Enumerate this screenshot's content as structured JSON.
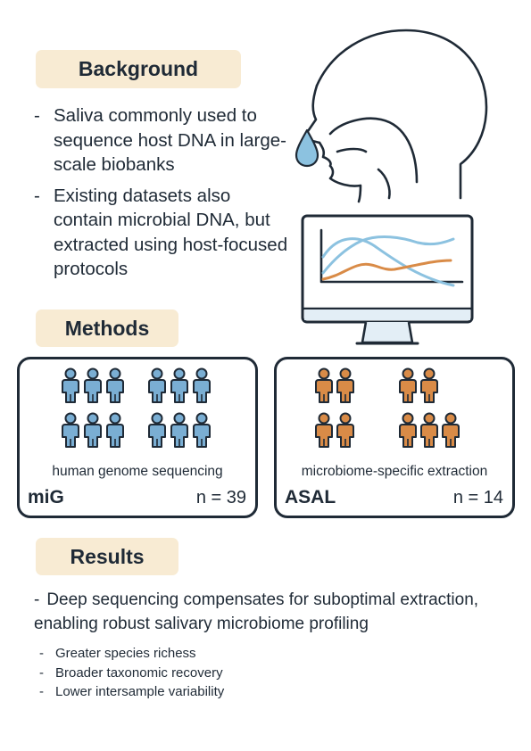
{
  "background": {
    "title": "Background",
    "bullets": [
      "Saliva commonly used to sequence host DNA in large-scale biobanks",
      "Existing datasets also contain microbial DNA, but extracted using host-focused protocols"
    ]
  },
  "methods": {
    "title": "Methods",
    "cohorts": [
      {
        "caption": "human genome sequencing",
        "name": "miG",
        "n": "n = 39",
        "color": "#7aaed3"
      },
      {
        "caption": "microbiome-specific extraction",
        "name": "ASAL",
        "n": "n = 14",
        "color": "#d98b47"
      }
    ]
  },
  "results": {
    "title": "Results",
    "main": "Deep sequencing compensates for suboptimal extraction, enabling robust salivary microbiome profiling",
    "sub": [
      "Greater species richess",
      "Broader taxonomic recovery",
      "Lower intersample variability"
    ]
  },
  "illustration": {
    "head_icon": "human-head-profile-icon",
    "drop_icon": "saliva-drop-icon",
    "monitor_icon": "monitor-chart-icon",
    "colors": {
      "blue": "#8cc2e0",
      "orange": "#d98b47",
      "line": "#1f2a36",
      "screen": "#e3eef6"
    }
  }
}
